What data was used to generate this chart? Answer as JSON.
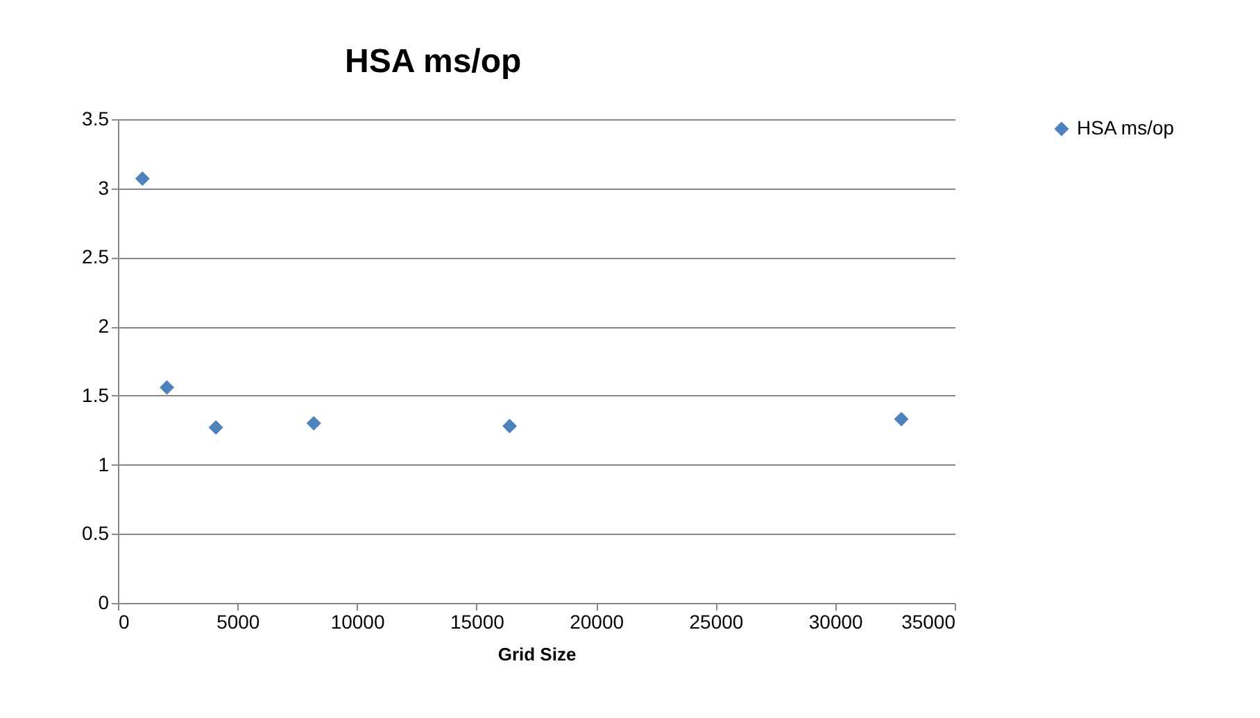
{
  "chart_data": {
    "type": "scatter",
    "title": "HSA ms/op",
    "xlabel": "Grid Size",
    "x": [
      1024,
      2048,
      4096,
      8192,
      16384,
      32768
    ],
    "series": [
      {
        "name": "HSA ms/op",
        "color": "#4f81bd",
        "values": [
          3.07,
          1.56,
          1.27,
          1.3,
          1.28,
          1.33
        ]
      }
    ],
    "xlim": [
      0,
      35000
    ],
    "xticks": [
      0,
      5000,
      10000,
      15000,
      20000,
      25000,
      30000,
      35000
    ],
    "ylim": [
      0,
      3.5
    ],
    "yticks": [
      0,
      0.5,
      1,
      1.5,
      2,
      2.5,
      3,
      3.5
    ],
    "grid": "y",
    "legend": "right",
    "marker": "diamond"
  }
}
